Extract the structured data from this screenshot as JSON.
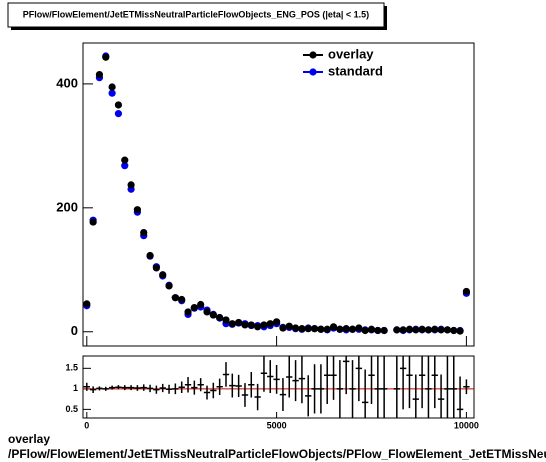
{
  "chart_data": [
    {
      "type": "scatter",
      "title": "PFlow/FlowElement/JetETMissNeutralParticleFlowObjects_ENG_POS (|eta| < 1.5)",
      "x": [
        0,
        167,
        333,
        500,
        667,
        833,
        1000,
        1167,
        1333,
        1500,
        1667,
        1833,
        2000,
        2167,
        2333,
        2500,
        2667,
        2833,
        3000,
        3167,
        3333,
        3500,
        3667,
        3833,
        4000,
        4167,
        4333,
        4500,
        4667,
        4833,
        5000,
        5167,
        5333,
        5500,
        5667,
        5833,
        6000,
        6167,
        6333,
        6500,
        6667,
        6833,
        7000,
        7167,
        7333,
        7500,
        7667,
        7833,
        8000,
        8167,
        8333,
        8500,
        8667,
        8833,
        9000,
        9167,
        9333,
        9500,
        9667,
        9833,
        10000
      ],
      "series": [
        {
          "name": "overlay",
          "color": "#000000",
          "values": [
            45,
            177,
            415,
            443,
            395,
            366,
            277,
            237,
            197,
            160,
            123,
            103,
            92,
            74,
            55,
            52,
            32,
            39,
            44,
            32,
            27,
            23,
            19,
            13,
            15,
            11,
            11,
            8,
            11,
            13,
            16,
            6,
            9,
            6,
            5,
            5,
            5,
            4,
            4,
            8,
            4,
            5,
            4,
            6,
            2,
            4,
            2,
            2,
            null,
            3,
            3,
            4,
            3,
            4,
            3,
            4,
            3,
            3,
            2,
            1,
            65
          ]
        },
        {
          "name": "standard",
          "color": "#0000ee",
          "values": [
            42,
            180,
            410,
            445,
            385,
            352,
            268,
            230,
            193,
            155,
            122,
            105,
            90,
            75,
            55,
            50,
            28,
            38,
            40,
            35,
            28,
            22,
            13,
            12,
            14,
            13,
            10,
            10,
            8,
            10,
            13,
            7,
            7,
            5,
            4,
            6,
            5,
            4,
            3,
            6,
            4,
            3,
            4,
            4,
            3,
            3,
            2,
            2,
            null,
            3,
            2,
            3,
            4,
            3,
            3,
            3,
            4,
            3,
            2,
            2,
            62
          ]
        }
      ],
      "xlim": [
        -100,
        10200
      ],
      "ylim": [
        -23,
        466
      ],
      "yticks": [
        0,
        200,
        400
      ]
    },
    {
      "type": "errorbar",
      "x": [
        0,
        167,
        333,
        500,
        667,
        833,
        1000,
        1167,
        1333,
        1500,
        1667,
        1833,
        2000,
        2167,
        2333,
        2500,
        2667,
        2833,
        3000,
        3167,
        3333,
        3500,
        3667,
        3833,
        4000,
        4167,
        4333,
        4500,
        4667,
        4833,
        5000,
        5167,
        5333,
        5500,
        5667,
        5833,
        6000,
        6167,
        6333,
        6500,
        6667,
        6833,
        7000,
        7167,
        7333,
        7500,
        7667,
        7833,
        8000,
        8167,
        8333,
        8500,
        8667,
        8833,
        9000,
        9167,
        9333,
        9500,
        9667,
        9833,
        10000
      ],
      "values": [
        1.05,
        0.98,
        1.01,
        1.0,
        1.03,
        1.04,
        1.03,
        1.03,
        1.02,
        1.03,
        1.01,
        0.98,
        1.02,
        0.99,
        1.0,
        1.04,
        1.1,
        1.03,
        1.1,
        0.91,
        0.96,
        1.05,
        1.35,
        1.08,
        1.07,
        0.85,
        1.1,
        0.8,
        1.38,
        1.3,
        1.23,
        0.86,
        1.29,
        1.2,
        1.25,
        0.83,
        1.0,
        1.0,
        1.33,
        1.33,
        1.0,
        1.67,
        1.0,
        1.5,
        0.67,
        1.33,
        1.0,
        1.0,
        null,
        1.0,
        1.5,
        1.33,
        0.75,
        1.33,
        1.0,
        1.33,
        0.75,
        1.0,
        1.0,
        0.5,
        1.05
      ],
      "errors": [
        0.1,
        0.08,
        0.05,
        0.05,
        0.05,
        0.05,
        0.06,
        0.06,
        0.07,
        0.08,
        0.09,
        0.1,
        0.1,
        0.11,
        0.13,
        0.14,
        0.19,
        0.17,
        0.16,
        0.17,
        0.19,
        0.2,
        0.3,
        0.29,
        0.27,
        0.29,
        0.31,
        0.32,
        0.45,
        0.4,
        0.35,
        0.4,
        0.5,
        0.5,
        0.6,
        0.5,
        0.6,
        0.6,
        0.7,
        0.6,
        0.7,
        0.8,
        0.7,
        0.8,
        0.8,
        0.7,
        1,
        1,
        null,
        0.8,
        1,
        0.8,
        0.6,
        0.8,
        0.8,
        0.8,
        0.6,
        0.8,
        1,
        0.8,
        0.18
      ],
      "color": "#000000",
      "bin_width": 167,
      "xlim": [
        -100,
        10200
      ],
      "xticks": [
        0,
        5000,
        10000
      ],
      "ylim": [
        0.29,
        1.8
      ],
      "yticks": [
        0.5,
        1,
        1.5
      ],
      "hline": 1,
      "hline_color": "#cc0000"
    }
  ],
  "footer": {
    "label": "overlay",
    "path": "/PFlow/FlowElement/JetETMissNeutralParticleFlowObjects/PFlow_FlowElement_JetETMissNeutralParticleFlowObjects_ENG_POS"
  }
}
